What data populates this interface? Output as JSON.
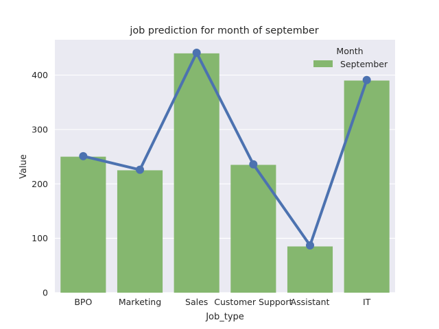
{
  "chart_data": {
    "type": "bar",
    "title": "job prediction for month of september",
    "xlabel": "Job_type",
    "ylabel": "Value",
    "categories": [
      "BPO",
      "Marketing",
      "Sales",
      "Customer Support",
      "Assistant",
      "IT"
    ],
    "series": [
      {
        "name": "September",
        "type": "bar",
        "values": [
          250,
          225,
          440,
          235,
          85,
          390
        ]
      },
      {
        "type": "line",
        "values": [
          251,
          226,
          441,
          236,
          87,
          391
        ]
      }
    ],
    "ylim": [
      0,
      465
    ],
    "yticks": [
      0,
      100,
      200,
      300,
      400
    ],
    "grid": true,
    "legend": {
      "title": "Month",
      "placement": "top-right"
    },
    "colors": {
      "bar": "#85b76f",
      "line": "#4c72b0",
      "background": "#eaeaf2",
      "grid": "#ffffff"
    }
  }
}
